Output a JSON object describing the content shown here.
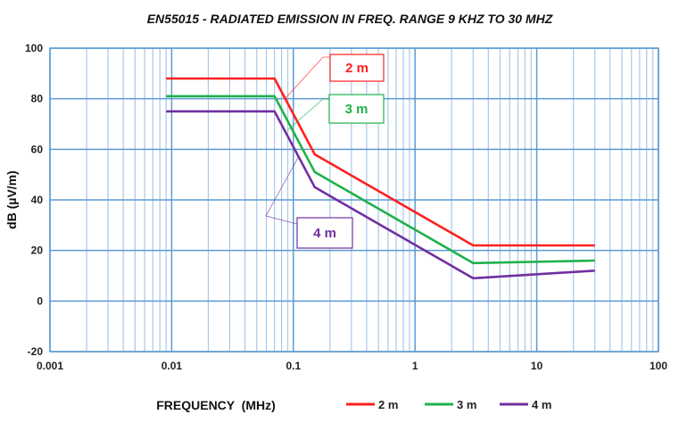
{
  "chart_data": {
    "type": "line",
    "title": "EN55015 - RADIATED EMISSION IN FREQ. RANGE 9 KHZ TO 30 MHZ",
    "xlabel": "FREQUENCY  (MHz)",
    "ylabel": "dB (µV/m)",
    "xscale": "log",
    "xlim": [
      0.001,
      100
    ],
    "ylim": [
      -20,
      100
    ],
    "xticks": [
      "0.001",
      "0.01",
      "0.1",
      "1",
      "10",
      "100"
    ],
    "yticks": [
      "-20",
      "0",
      "20",
      "40",
      "60",
      "80",
      "100"
    ],
    "grid": true,
    "legend_position": "bottom",
    "series": [
      {
        "name": "2 m",
        "color": "#ff2020",
        "x": [
          0.009,
          0.07,
          0.15,
          3,
          30
        ],
        "y": [
          88,
          88,
          58,
          22,
          22
        ]
      },
      {
        "name": "3 m",
        "color": "#1fb14a",
        "x": [
          0.009,
          0.07,
          0.15,
          3,
          30
        ],
        "y": [
          81,
          81,
          51,
          15,
          16
        ]
      },
      {
        "name": "4 m",
        "color": "#7030a0",
        "x": [
          0.009,
          0.07,
          0.15,
          3,
          30
        ],
        "y": [
          75,
          75,
          45,
          9,
          12
        ]
      }
    ],
    "annotations": [
      "2 m",
      "3 m",
      "4 m"
    ]
  },
  "colors": {
    "grid_major": "#5b9bd5",
    "grid_minor": "#a9c8ea"
  }
}
